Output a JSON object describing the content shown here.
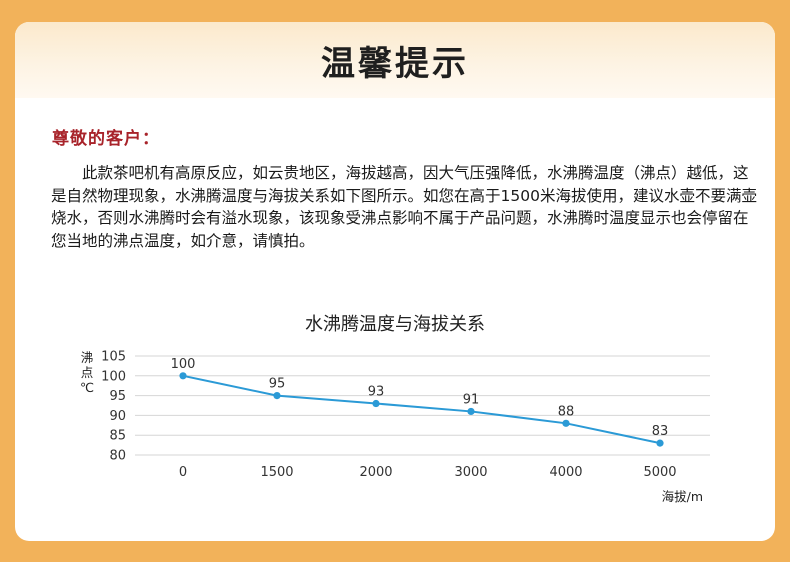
{
  "title": "温馨提示",
  "greeting": "尊敬的客户：",
  "body_text": "　　此款茶吧机有高原反应，如云贵地区，海拔越高，因大气压强降低，水沸腾温度（沸点）越低，这是自然物理现象，水沸腾温度与海拔关系如下图所示。如您在高于1500米海拔使用，建议水壶不要满壶烧水，否则水沸腾时会有溢水现象，该现象受沸点影响不属于产品问题，水沸腾时温度显示也会停留在您当地的沸点温度，如介意，请慎拍。",
  "colors": {
    "background": "#F2B25A",
    "title_text": "#1f1f1f",
    "greeting_text": "#A8232A",
    "line": "#2B9AD6"
  },
  "chart_data": {
    "type": "line",
    "title": "水沸腾温度与海拔关系",
    "categories": [
      "0",
      "1500",
      "2000",
      "3000",
      "4000",
      "5000"
    ],
    "values": [
      100,
      95,
      93,
      91,
      88,
      83
    ],
    "data_labels": [
      "100",
      "95",
      "93",
      "91",
      "88",
      "83"
    ],
    "y_ticks": [
      "105",
      "100",
      "95",
      "90",
      "85",
      "80"
    ],
    "ylim": [
      80,
      105
    ],
    "ylabel": "沸点℃",
    "xlabel": "海拔/m",
    "grid": true,
    "legend": "none"
  }
}
